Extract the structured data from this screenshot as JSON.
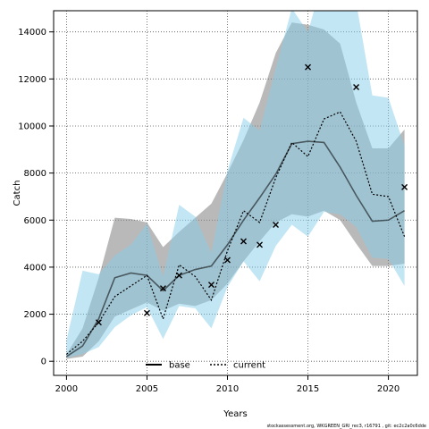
{
  "chart_data": {
    "type": "line",
    "xlabel": "Years",
    "ylabel": "Catch",
    "xlim": [
      1999.2,
      2021.8
    ],
    "ylim": [
      -600,
      14900
    ],
    "xticks": [
      2000,
      2005,
      2010,
      2015,
      2020
    ],
    "yticks": [
      0,
      2000,
      4000,
      6000,
      8000,
      10000,
      12000,
      14000
    ],
    "grid": true,
    "legend_position": "bottom-center",
    "footer": "stockassessment.org, WKGREEN_GRI_rec3, r16791 , git: ec2c2a0c6dde",
    "x": [
      2000,
      2001,
      2002,
      2003,
      2004,
      2005,
      2006,
      2007,
      2008,
      2009,
      2010,
      2011,
      2012,
      2013,
      2014,
      2015,
      2016,
      2017,
      2018,
      2019,
      2020,
      2021
    ],
    "series": [
      {
        "name": "base",
        "color": "#000000",
        "fill": "#808080",
        "style": "solid",
        "values": [
          200,
          650,
          1800,
          3550,
          3750,
          3650,
          3000,
          3650,
          3900,
          4050,
          4950,
          6000,
          6950,
          7950,
          9250,
          9350,
          9300,
          8250,
          7050,
          5950,
          6000,
          6400
        ],
        "lower": [
          100,
          200,
          850,
          1900,
          2200,
          2500,
          2150,
          2450,
          2350,
          2600,
          3300,
          4250,
          5100,
          5900,
          6250,
          6150,
          6400,
          6000,
          5000,
          4050,
          4050,
          4150
        ],
        "upper": [
          300,
          1400,
          3550,
          6100,
          6050,
          5900,
          4850,
          5500,
          6100,
          6700,
          8000,
          9400,
          11000,
          13100,
          14400,
          14300,
          14100,
          13500,
          11000,
          9050,
          9050,
          9850
        ]
      },
      {
        "name": "current",
        "color": "#000000",
        "fill": "#87ceeb",
        "style": "dotted",
        "values": [
          300,
          850,
          1650,
          2750,
          3200,
          3650,
          1800,
          4100,
          3600,
          2600,
          4700,
          6400,
          5900,
          7800,
          9300,
          8700,
          10300,
          10600,
          9350,
          7100,
          7000,
          5300
        ],
        "lower": [
          150,
          300,
          600,
          1450,
          1950,
          2300,
          950,
          2350,
          2250,
          1400,
          3150,
          4250,
          3400,
          4900,
          5800,
          5300,
          6350,
          6250,
          5700,
          4400,
          4350,
          3200
        ],
        "upper": [
          900,
          3850,
          3700,
          4500,
          4950,
          5850,
          3600,
          6650,
          6150,
          4600,
          8100,
          10350,
          9800,
          12450,
          15000,
          14000,
          16400,
          17200,
          15250,
          11300,
          11200,
          9150
        ]
      }
    ],
    "observations": {
      "marker": "x",
      "x": [
        2002,
        2005,
        2006,
        2007,
        2009,
        2010,
        2011,
        2012,
        2013,
        2015,
        2018,
        2021
      ],
      "y": [
        1650,
        2050,
        3100,
        3650,
        3250,
        4300,
        5100,
        4950,
        5800,
        12500,
        11650,
        7400
      ]
    }
  }
}
